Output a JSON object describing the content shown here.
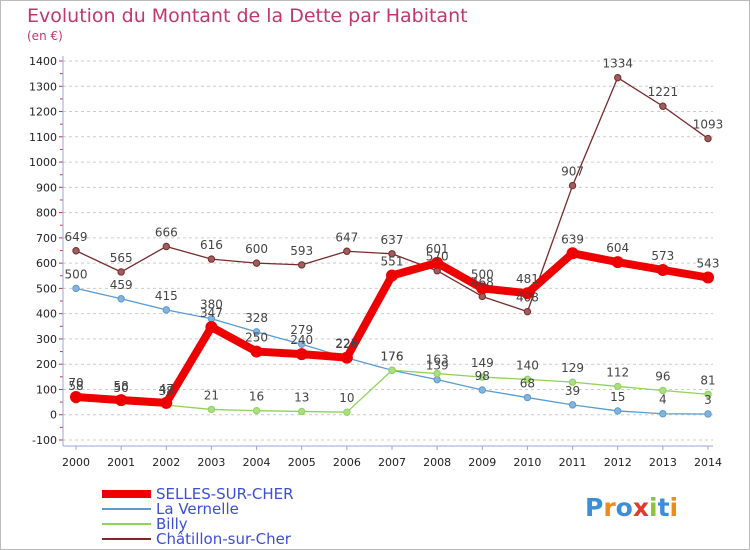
{
  "header": {
    "title": "Evolution du Montant de la Dette par Habitant",
    "unit": "(en €)"
  },
  "logo": {
    "text": "Proxiti"
  },
  "chart_data": {
    "type": "line",
    "title": "Evolution du Montant de la Dette par Habitant",
    "subtitle": "(en €)",
    "xlabel": "",
    "ylabel": "",
    "ylim": [
      -100,
      1400
    ],
    "y_ticks": [
      -100,
      0,
      100,
      200,
      300,
      400,
      500,
      600,
      700,
      800,
      900,
      1000,
      1100,
      1200,
      1300,
      1400
    ],
    "x": [
      2000,
      2001,
      2002,
      2003,
      2004,
      2005,
      2006,
      2007,
      2008,
      2009,
      2010,
      2011,
      2012,
      2013,
      2014
    ],
    "grid": "horizontal dashed",
    "legend_position": "bottom",
    "series": [
      {
        "name": "Châtillon-sur-Cher",
        "color": "#7a2a2a",
        "values": [
          649,
          565,
          666,
          616,
          600,
          593,
          647,
          637,
          570,
          468,
          408,
          907,
          1334,
          1221,
          1093
        ]
      },
      {
        "name": "La Vernelle",
        "color": "#5b9bd0",
        "values": [
          500,
          459,
          415,
          380,
          328,
          279,
          225,
          176,
          139,
          98,
          68,
          39,
          15,
          4,
          3
        ]
      },
      {
        "name": "Billy",
        "color": "#8fd35a",
        "values": [
          58,
          50,
          38,
          21,
          16,
          13,
          10,
          176,
          163,
          149,
          140,
          129,
          112,
          96,
          81
        ]
      },
      {
        "name": "SELLES-SUR-CHER",
        "color": "#ee0000",
        "values": [
          70,
          58,
          47,
          347,
          250,
          240,
          226,
          551,
          601,
          500,
          481,
          639,
          604,
          573,
          543
        ]
      }
    ]
  }
}
